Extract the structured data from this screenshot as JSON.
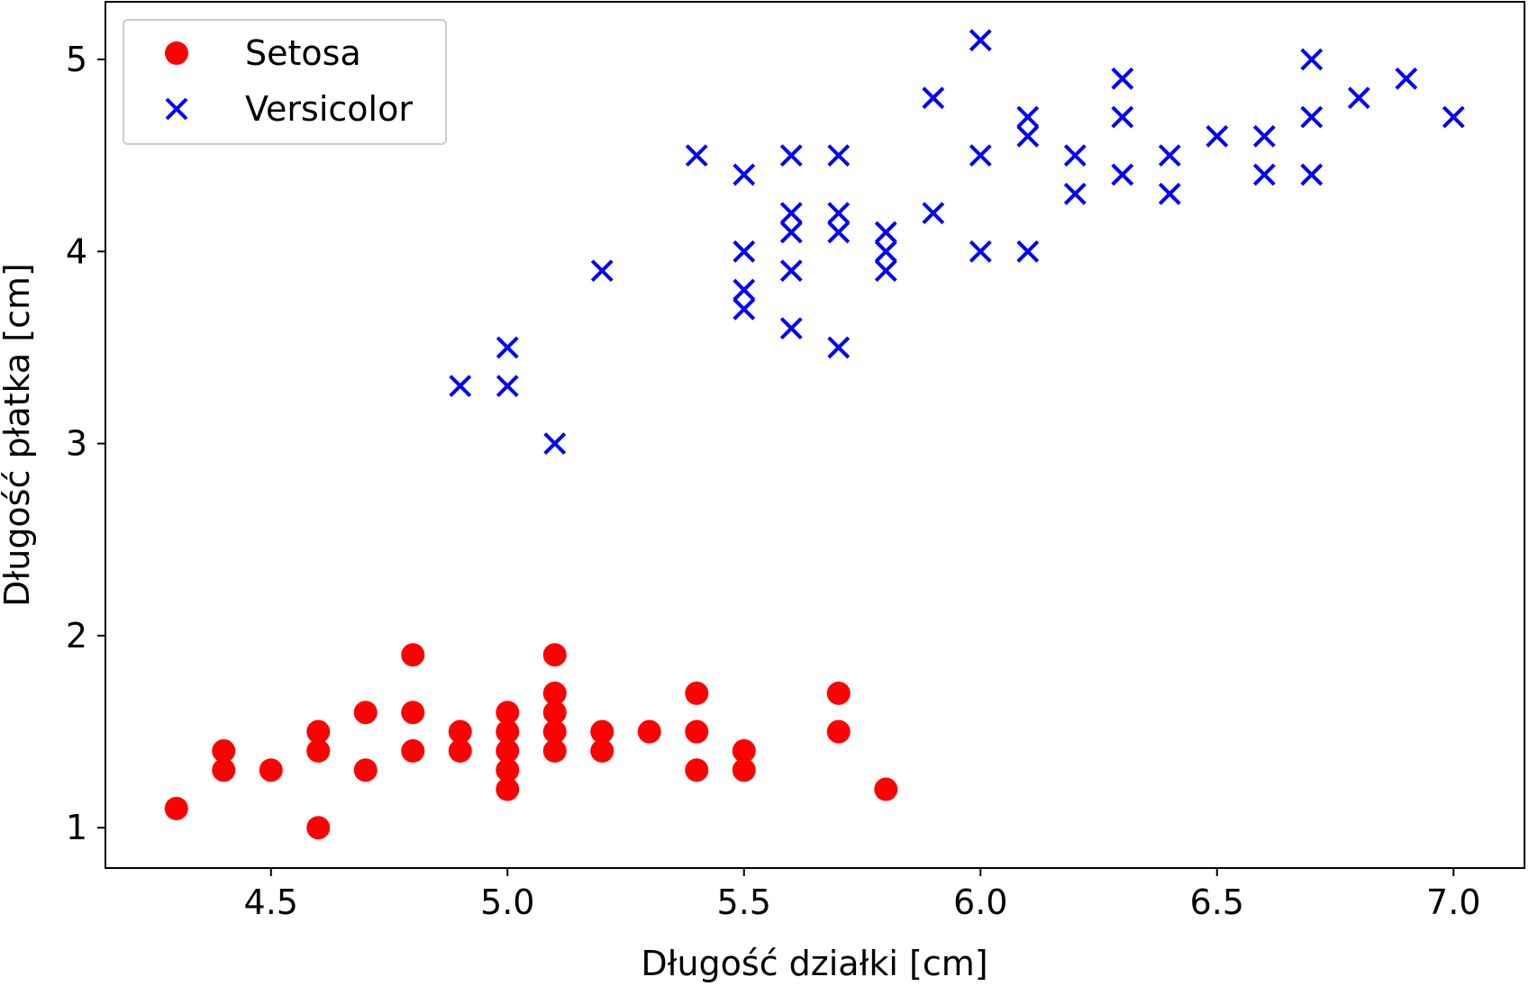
{
  "chart_data": {
    "type": "scatter",
    "title": "",
    "xlabel": "Długość działki [cm]",
    "ylabel": "Długość płatka [cm]",
    "xlim": [
      4.15,
      7.15
    ],
    "ylim": [
      0.79,
      5.3
    ],
    "xticks": [
      4.5,
      5.0,
      5.5,
      6.0,
      6.5,
      7.0
    ],
    "xtick_labels": [
      "4.5",
      "5.0",
      "5.5",
      "6.0",
      "6.5",
      "7.0"
    ],
    "yticks": [
      1,
      2,
      3,
      4,
      5
    ],
    "ytick_labels": [
      "1",
      "2",
      "3",
      "4",
      "5"
    ],
    "grid": false,
    "legend_position": "upper-left",
    "series": [
      {
        "name": "Setosa",
        "marker": "circle",
        "color": "#ff0000",
        "points": [
          [
            4.3,
            1.1
          ],
          [
            4.4,
            1.3
          ],
          [
            4.4,
            1.4
          ],
          [
            4.5,
            1.3
          ],
          [
            4.6,
            1.0
          ],
          [
            4.6,
            1.4
          ],
          [
            4.6,
            1.5
          ],
          [
            4.7,
            1.3
          ],
          [
            4.7,
            1.6
          ],
          [
            4.8,
            1.4
          ],
          [
            4.8,
            1.6
          ],
          [
            4.8,
            1.9
          ],
          [
            4.9,
            1.4
          ],
          [
            4.9,
            1.5
          ],
          [
            5.0,
            1.2
          ],
          [
            5.0,
            1.3
          ],
          [
            5.0,
            1.4
          ],
          [
            5.0,
            1.5
          ],
          [
            5.0,
            1.6
          ],
          [
            5.1,
            1.4
          ],
          [
            5.1,
            1.5
          ],
          [
            5.1,
            1.6
          ],
          [
            5.1,
            1.7
          ],
          [
            5.1,
            1.9
          ],
          [
            5.2,
            1.4
          ],
          [
            5.2,
            1.5
          ],
          [
            5.3,
            1.5
          ],
          [
            5.4,
            1.3
          ],
          [
            5.4,
            1.5
          ],
          [
            5.4,
            1.7
          ],
          [
            5.5,
            1.3
          ],
          [
            5.5,
            1.4
          ],
          [
            5.7,
            1.5
          ],
          [
            5.7,
            1.7
          ],
          [
            5.8,
            1.2
          ]
        ]
      },
      {
        "name": "Versicolor",
        "marker": "x",
        "color": "#0000ff",
        "points": [
          [
            4.9,
            3.3
          ],
          [
            5.0,
            3.3
          ],
          [
            5.0,
            3.5
          ],
          [
            5.1,
            3.0
          ],
          [
            5.2,
            3.9
          ],
          [
            5.4,
            4.5
          ],
          [
            5.5,
            3.7
          ],
          [
            5.5,
            3.8
          ],
          [
            5.5,
            4.0
          ],
          [
            5.5,
            4.4
          ],
          [
            5.6,
            3.6
          ],
          [
            5.6,
            3.9
          ],
          [
            5.6,
            4.1
          ],
          [
            5.6,
            4.2
          ],
          [
            5.6,
            4.5
          ],
          [
            5.7,
            3.5
          ],
          [
            5.7,
            4.1
          ],
          [
            5.7,
            4.2
          ],
          [
            5.7,
            4.5
          ],
          [
            5.8,
            3.9
          ],
          [
            5.8,
            4.0
          ],
          [
            5.8,
            4.1
          ],
          [
            5.9,
            4.2
          ],
          [
            5.9,
            4.8
          ],
          [
            6.0,
            4.0
          ],
          [
            6.0,
            4.5
          ],
          [
            6.0,
            5.1
          ],
          [
            6.1,
            4.0
          ],
          [
            6.1,
            4.6
          ],
          [
            6.1,
            4.7
          ],
          [
            6.2,
            4.3
          ],
          [
            6.2,
            4.5
          ],
          [
            6.3,
            4.4
          ],
          [
            6.3,
            4.7
          ],
          [
            6.3,
            4.9
          ],
          [
            6.4,
            4.3
          ],
          [
            6.4,
            4.5
          ],
          [
            6.5,
            4.6
          ],
          [
            6.6,
            4.4
          ],
          [
            6.6,
            4.6
          ],
          [
            6.7,
            4.4
          ],
          [
            6.7,
            4.7
          ],
          [
            6.7,
            5.0
          ],
          [
            6.8,
            4.8
          ],
          [
            6.9,
            4.9
          ],
          [
            7.0,
            4.7
          ]
        ]
      }
    ]
  }
}
